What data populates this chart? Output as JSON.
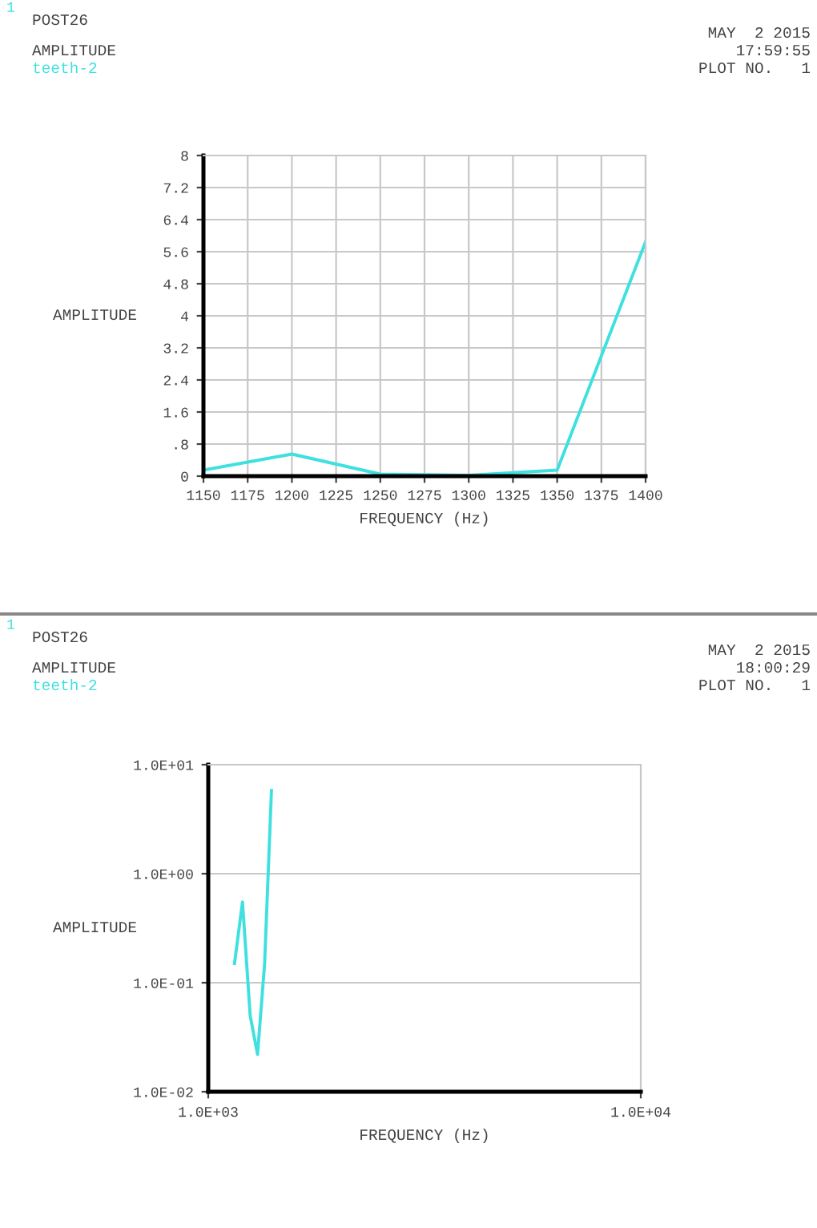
{
  "chart_data": [
    {
      "type": "line",
      "title": "POST26",
      "subtitle": "AMPLITUDE",
      "xlabel": "FREQUENCY (Hz)",
      "ylabel": "AMPLITUDE",
      "annotations": [
        "1",
        "MAY  2 2015",
        "17:59:55",
        "PLOT NO.   1"
      ],
      "series": [
        {
          "name": "teeth-2",
          "color": "#3fe0e0",
          "x": [
            1150,
            1200,
            1250,
            1300,
            1350,
            1400
          ],
          "values": [
            0.15,
            0.55,
            0.05,
            0.02,
            0.15,
            5.85
          ]
        }
      ],
      "xlim": [
        1150,
        1400
      ],
      "xticks": [
        1150,
        1175,
        1200,
        1225,
        1250,
        1275,
        1300,
        1325,
        1350,
        1375,
        1400
      ],
      "ylim": [
        0,
        8
      ],
      "yticks": [
        0,
        {
          "value": 0.8,
          "label": ".8"
        },
        1.6,
        2.4,
        3.2,
        4,
        4.8,
        5.6,
        6.4,
        7.2,
        8
      ],
      "grid": true,
      "legend": "top left"
    },
    {
      "type": "line",
      "title": "POST26",
      "subtitle": "AMPLITUDE",
      "xlabel": "FREQUENCY (Hz)",
      "ylabel": "AMPLITUDE",
      "annotations": [
        "1",
        "MAY  2 2015",
        "18:00:29",
        "PLOT NO.   1"
      ],
      "series": [
        {
          "name": "teeth-2",
          "color": "#3fe0e0",
          "x": [
            1150,
            1200,
            1250,
            1300,
            1350,
            1400
          ],
          "values": [
            0.15,
            0.55,
            0.05,
            0.022,
            0.15,
            5.8
          ]
        }
      ],
      "log": "xy",
      "xlim": [
        1000,
        10000
      ],
      "xticks": [
        {
          "value": 1000,
          "label": "1.0E+03"
        },
        {
          "value": 10000,
          "label": "1.0E+04"
        }
      ],
      "ylim": [
        0.01,
        10
      ],
      "yticks": [
        {
          "value": 0.01,
          "label": "1.0E-02"
        },
        {
          "value": 0.1,
          "label": "1.0E-01"
        },
        {
          "value": 1,
          "label": "1.0E+00"
        },
        {
          "value": 10,
          "label": "1.0E+01"
        }
      ],
      "grid": "y",
      "legend": "top left"
    }
  ]
}
